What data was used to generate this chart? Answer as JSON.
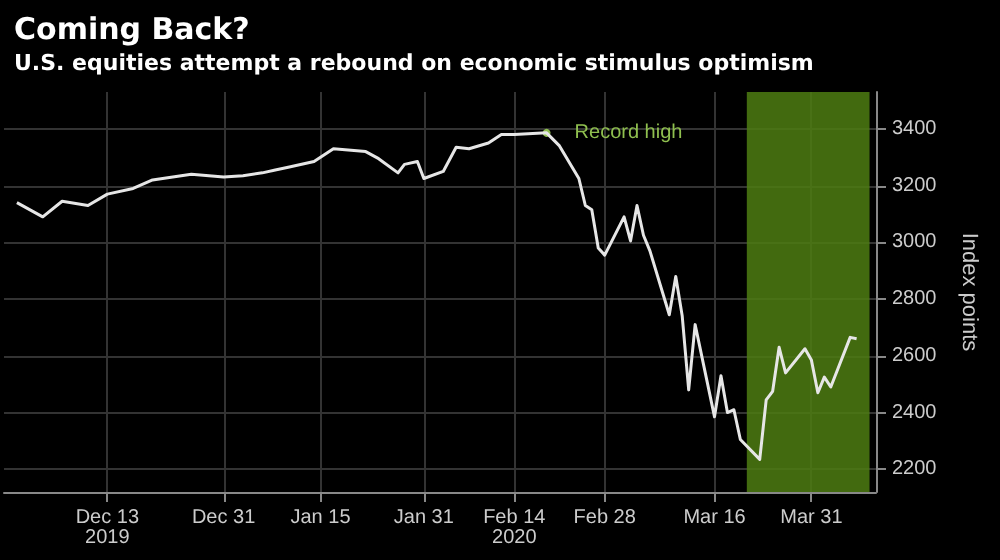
{
  "chart_data": {
    "type": "line",
    "title": "Coming Back?",
    "subtitle": "U.S. equities attempt a rebound on economic stimulus optimism",
    "ylabel": "Index points",
    "x": [
      "2019-11-29",
      "2019-12-03",
      "2019-12-06",
      "2019-12-10",
      "2019-12-13",
      "2019-12-17",
      "2019-12-20",
      "2019-12-26",
      "2019-12-31",
      "2020-01-03",
      "2020-01-06",
      "2020-01-08",
      "2020-01-10",
      "2020-01-14",
      "2020-01-17",
      "2020-01-22",
      "2020-01-24",
      "2020-01-27",
      "2020-01-28",
      "2020-01-30",
      "2020-01-31",
      "2020-02-03",
      "2020-02-05",
      "2020-02-07",
      "2020-02-10",
      "2020-02-12",
      "2020-02-14",
      "2020-02-19",
      "2020-02-21",
      "2020-02-24",
      "2020-02-25",
      "2020-02-26",
      "2020-02-27",
      "2020-02-28",
      "2020-03-02",
      "2020-03-03",
      "2020-03-04",
      "2020-03-05",
      "2020-03-06",
      "2020-03-09",
      "2020-03-10",
      "2020-03-11",
      "2020-03-12",
      "2020-03-13",
      "2020-03-16",
      "2020-03-17",
      "2020-03-18",
      "2020-03-19",
      "2020-03-20",
      "2020-03-23",
      "2020-03-24",
      "2020-03-25",
      "2020-03-26",
      "2020-03-27",
      "2020-03-30",
      "2020-03-31",
      "2020-04-01",
      "2020-04-02",
      "2020-04-03",
      "2020-04-06",
      "2020-04-07"
    ],
    "series": [
      {
        "color": "#e6e6e6",
        "values": [
          3140,
          3090,
          3145,
          3130,
          3170,
          3190,
          3220,
          3240,
          3230,
          3235,
          3245,
          3255,
          3265,
          3285,
          3330,
          3320,
          3295,
          3245,
          3275,
          3285,
          3225,
          3250,
          3335,
          3330,
          3350,
          3380,
          3380,
          3386,
          3340,
          3225,
          3130,
          3115,
          2980,
          2955,
          3090,
          3005,
          3130,
          3025,
          2970,
          2745,
          2880,
          2740,
          2480,
          2710,
          2385,
          2530,
          2400,
          2410,
          2305,
          2235,
          2445,
          2475,
          2630,
          2540,
          2625,
          2585,
          2470,
          2525,
          2490,
          2665,
          2660
        ]
      }
    ],
    "xlim": [
      "2019-11-27",
      "2020-04-10"
    ],
    "xticks": [
      {
        "value": "2019-12-13",
        "label": "Dec 13\n2019"
      },
      {
        "value": "2019-12-31",
        "label": "Dec 31"
      },
      {
        "value": "2020-01-15",
        "label": "Jan 15"
      },
      {
        "value": "2020-01-31",
        "label": "Jan 31"
      },
      {
        "value": "2020-02-14",
        "label": "Feb 14\n2020"
      },
      {
        "value": "2020-02-28",
        "label": "Feb 28"
      },
      {
        "value": "2020-03-16",
        "label": "Mar 16"
      },
      {
        "value": "2020-03-31",
        "label": "Mar 31"
      }
    ],
    "ylim": [
      2120,
      3530
    ],
    "yticks": [
      2200,
      2400,
      2600,
      2800,
      3000,
      3200,
      3400
    ],
    "bands": [
      {
        "axis": "x",
        "from": "2020-03-21",
        "to": "2020-04-09",
        "color": "#4e7d12"
      }
    ],
    "annotations": [
      {
        "text": "Record high",
        "x": "2020-02-19",
        "y": 3386
      }
    ],
    "grid": true,
    "marker": "none",
    "line_style": "solid"
  }
}
